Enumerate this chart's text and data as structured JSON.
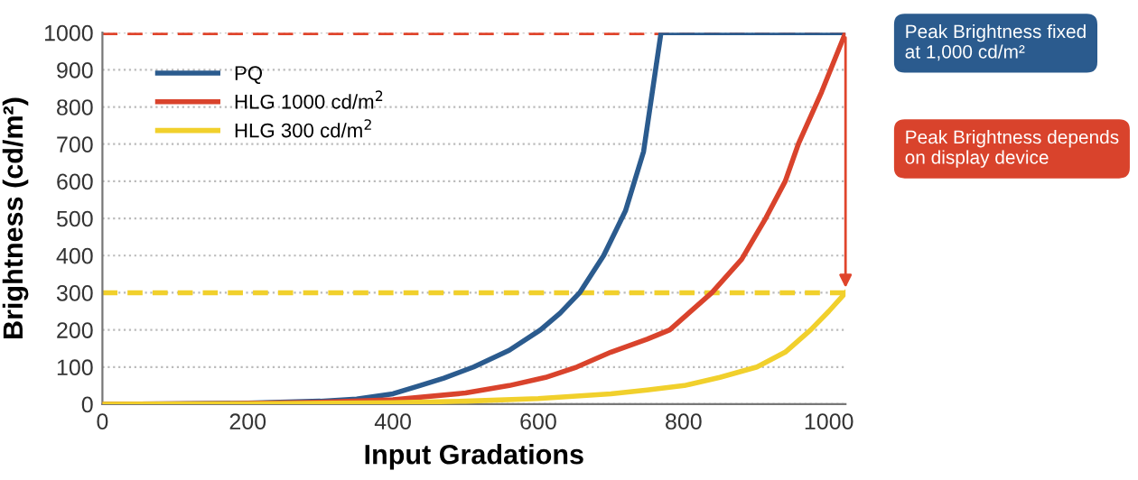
{
  "chart_data": {
    "type": "line",
    "xlabel": "Input Gradations",
    "ylabel": "Brightness (cd/m²)",
    "xlim": [
      0,
      1023
    ],
    "ylim": [
      0,
      1000
    ],
    "xticks": [
      0,
      200,
      400,
      600,
      800,
      1000
    ],
    "yticks": [
      0,
      100,
      200,
      300,
      400,
      500,
      600,
      700,
      800,
      900,
      1000
    ],
    "grid": "y",
    "legend": "top left",
    "marker": "none",
    "line_style": "solid",
    "series": [
      {
        "name": "PQ",
        "color": "#2b5b8e",
        "x": [
          0,
          100,
          200,
          300,
          350,
          400,
          437,
          470,
          511,
          560,
          603,
          630,
          657,
          690,
          720,
          745,
          769,
          900,
          1023
        ],
        "values": [
          0,
          1,
          3,
          8,
          14,
          28,
          50,
          70,
          100,
          145,
          200,
          245,
          300,
          400,
          520,
          680,
          1000,
          1000,
          1000
        ]
      },
      {
        "name": "HLG 1000 cd/m$^{2}$",
        "color": "#d9432c",
        "x": [
          0,
          100,
          200,
          300,
          400,
          500,
          560,
          610,
          653,
          700,
          750,
          781,
          839,
          880,
          913,
          940,
          958,
          990,
          1023
        ],
        "values": [
          0,
          1,
          2,
          5,
          12,
          30,
          50,
          72,
          100,
          140,
          175,
          200,
          300,
          390,
          500,
          600,
          700,
          840,
          1000
        ]
      },
      {
        "name": "HLG 300 cd/m$^{2}$",
        "color": "#f1d02c",
        "x": [
          0,
          200,
          400,
          500,
          600,
          700,
          750,
          801,
          850,
          901,
          940,
          975,
          1000,
          1023
        ],
        "values": [
          0,
          1,
          4,
          8,
          15,
          28,
          38,
          50,
          72,
          100,
          140,
          200,
          250,
          300
        ]
      }
    ],
    "ref_lines": [
      {
        "axis": "y",
        "value": 1000,
        "color": "#e0452c",
        "line_style": "dashed"
      },
      {
        "axis": "y",
        "value": 300,
        "color": "#f1d02c",
        "line_style": "dashed"
      }
    ],
    "annotations": [
      "Peak Brightness fixed\nat 1,000 cd/m²",
      "Peak Brightness depends\non display device"
    ]
  }
}
